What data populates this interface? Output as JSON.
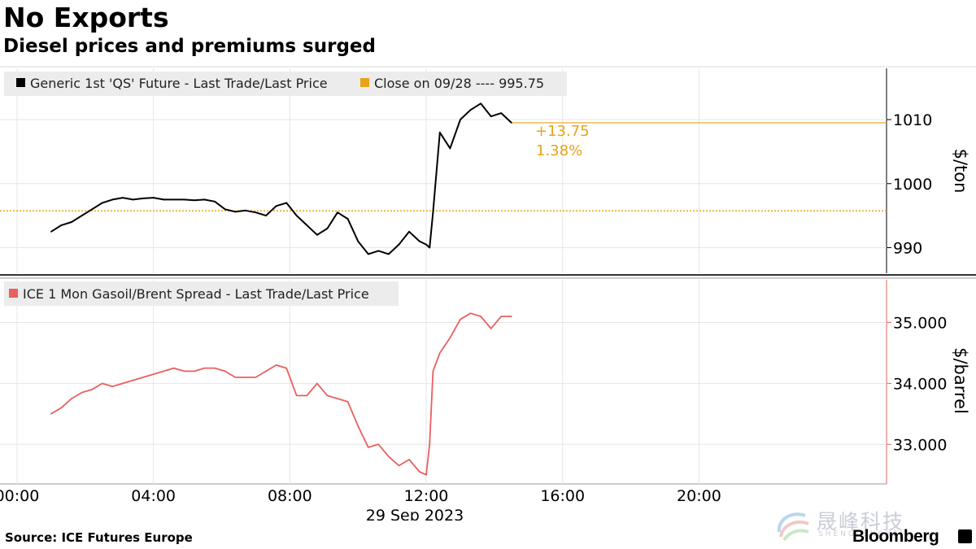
{
  "title": "No Exports",
  "subtitle": "Diesel prices and premiums surged",
  "source": "Source: ICE Futures Europe",
  "brand": "Bloomberg",
  "watermark": "晟峰科技",
  "watermark_sub": "SHENGFENGKEJI",
  "colors": {
    "series_top": "#000000",
    "series_bottom": "#e8605f",
    "close_line": "#e8a317",
    "legend_bg": "#ececec",
    "grid": "#e6e6e6"
  },
  "chart_data": [
    {
      "type": "line",
      "legend": "Generic 1st 'QS' Future - Last Trade/Last Price",
      "close_legend": "Close on 09/28 ---- 995.75",
      "close_value": 995.75,
      "last_value": 1009.5,
      "change_label": "+13.75",
      "change_pct_label": "1.38%",
      "ylabel": "$/ton",
      "ylim": [
        986,
        1018
      ],
      "yticks": [
        990,
        1000,
        1010
      ],
      "ytick_labels": [
        "990",
        "1000",
        "1010"
      ],
      "x": [
        1.0,
        1.3,
        1.6,
        1.9,
        2.2,
        2.5,
        2.8,
        3.1,
        3.4,
        3.7,
        4.0,
        4.3,
        4.6,
        4.9,
        5.2,
        5.5,
        5.8,
        6.1,
        6.4,
        6.7,
        7.0,
        7.3,
        7.6,
        7.9,
        8.2,
        8.5,
        8.8,
        9.1,
        9.4,
        9.7,
        10.0,
        10.3,
        10.6,
        10.9,
        11.2,
        11.5,
        11.8,
        12.0,
        12.1,
        12.2,
        12.4,
        12.7,
        13.0,
        13.3,
        13.6,
        13.9,
        14.2,
        14.5
      ],
      "y": [
        992.5,
        993.5,
        994.0,
        995.0,
        996.0,
        997.0,
        997.5,
        997.8,
        997.5,
        997.7,
        997.8,
        997.5,
        997.5,
        997.5,
        997.4,
        997.5,
        997.2,
        996.0,
        995.6,
        995.8,
        995.5,
        995.0,
        996.5,
        997.0,
        995.0,
        993.5,
        992.0,
        993.0,
        995.5,
        994.5,
        991.0,
        989.0,
        989.5,
        989.0,
        990.5,
        992.5,
        991.0,
        990.5,
        990.0,
        995.5,
        1008.0,
        1005.5,
        1010.0,
        1011.5,
        1012.5,
        1010.5,
        1011.0,
        1009.5
      ],
      "series": [
        {
          "name": "Generic 1st 'QS' Future - Last Trade/Last Price"
        }
      ]
    },
    {
      "type": "line",
      "legend": "ICE 1 Mon Gasoil/Brent Spread - Last Trade/Last Price",
      "ylabel": "$/barrel",
      "ylim": [
        32.35,
        35.7
      ],
      "yticks": [
        33,
        34,
        35
      ],
      "ytick_labels": [
        "33.000",
        "34.000",
        "35.000"
      ],
      "x": [
        1.0,
        1.3,
        1.6,
        1.9,
        2.2,
        2.5,
        2.8,
        3.1,
        3.4,
        3.7,
        4.0,
        4.3,
        4.6,
        4.9,
        5.2,
        5.5,
        5.8,
        6.1,
        6.4,
        6.7,
        7.0,
        7.3,
        7.6,
        7.9,
        8.2,
        8.5,
        8.8,
        9.1,
        9.4,
        9.7,
        10.0,
        10.3,
        10.6,
        10.9,
        11.2,
        11.5,
        11.8,
        12.0,
        12.1,
        12.2,
        12.4,
        12.7,
        13.0,
        13.3,
        13.6,
        13.9,
        14.2,
        14.5
      ],
      "y": [
        33.5,
        33.6,
        33.75,
        33.85,
        33.9,
        34.0,
        33.95,
        34.0,
        34.05,
        34.1,
        34.15,
        34.2,
        34.25,
        34.2,
        34.2,
        34.25,
        34.25,
        34.2,
        34.1,
        34.1,
        34.1,
        34.2,
        34.3,
        34.25,
        33.8,
        33.8,
        34.0,
        33.8,
        33.75,
        33.7,
        33.3,
        32.95,
        33.0,
        32.8,
        32.65,
        32.75,
        32.55,
        32.5,
        33.0,
        34.2,
        34.5,
        34.75,
        35.05,
        35.15,
        35.1,
        34.9,
        35.1,
        35.1
      ],
      "series": [
        {
          "name": "ICE 1 Mon Gasoil/Brent Spread - Last Trade/Last Price"
        }
      ]
    }
  ],
  "x_axis": {
    "xlim": [
      -0.5,
      25.5
    ],
    "ticks": [
      0,
      4,
      8,
      12,
      16,
      20
    ],
    "tick_labels": [
      "00:00",
      "04:00",
      "08:00",
      "12:00",
      "16:00",
      "20:00"
    ],
    "date_label": "29 Sep 2023"
  }
}
